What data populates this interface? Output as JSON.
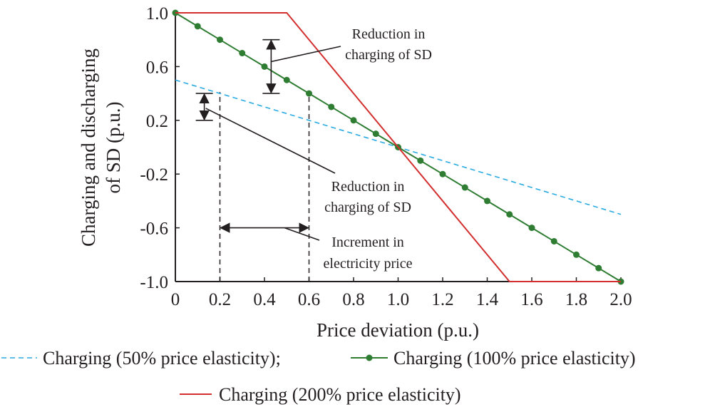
{
  "chart_data": {
    "type": "line",
    "xlabel": "Price deviation (p.u.)",
    "ylabel_lines": [
      "Charging and discharging",
      "of SD (p.u.)"
    ],
    "xlim": [
      0,
      2.0
    ],
    "ylim": [
      -1.0,
      1.0
    ],
    "x_ticks": [
      "0",
      "0.2",
      "0.4",
      "0.6",
      "0.8",
      "1.0",
      "1.2",
      "1.4",
      "1.6",
      "1.8",
      "2.0"
    ],
    "y_ticks": [
      "1.0",
      "0.6",
      "0.2",
      "-0.2",
      "-0.6",
      "-1.0"
    ],
    "grid": false,
    "legend_position": "bottom",
    "series": [
      {
        "name": "Charging (50% price elasticity)",
        "style": "dashed",
        "color": "#29abe2",
        "x": [
          0,
          2.0
        ],
        "y": [
          0.5,
          -0.5
        ]
      },
      {
        "name": "Charging (100% price elasticity)",
        "style": "solid-markers",
        "color": "#2e7d32",
        "x": [
          0,
          0.1,
          0.2,
          0.3,
          0.4,
          0.5,
          0.6,
          0.7,
          0.8,
          0.9,
          1.0,
          1.1,
          1.2,
          1.3,
          1.4,
          1.5,
          1.6,
          1.7,
          1.8,
          1.9,
          2.0
        ],
        "y": [
          1.0,
          0.9,
          0.8,
          0.7,
          0.6,
          0.5,
          0.4,
          0.3,
          0.2,
          0.1,
          0.0,
          -0.1,
          -0.2,
          -0.3,
          -0.4,
          -0.5,
          -0.6,
          -0.7,
          -0.8,
          -0.9,
          -1.0
        ]
      },
      {
        "name": "Charging (200% price elasticity)",
        "style": "solid",
        "color": "#d32f2f",
        "x": [
          0,
          0.5,
          1.5,
          2.0
        ],
        "y": [
          1.0,
          1.0,
          -1.0,
          -1.0
        ]
      }
    ],
    "annotations": {
      "reduction_upper": [
        "Reduction in",
        "charging of SD"
      ],
      "reduction_lower": [
        "Reduction in",
        "charging of SD"
      ],
      "increment": [
        "Increment in",
        "electricity price"
      ]
    },
    "legend": {
      "row1_a": "Charging (50% price elasticity);",
      "row1_b": "Charging (100% price elasticity)",
      "row2": "Charging (200% price elasticity)"
    }
  }
}
